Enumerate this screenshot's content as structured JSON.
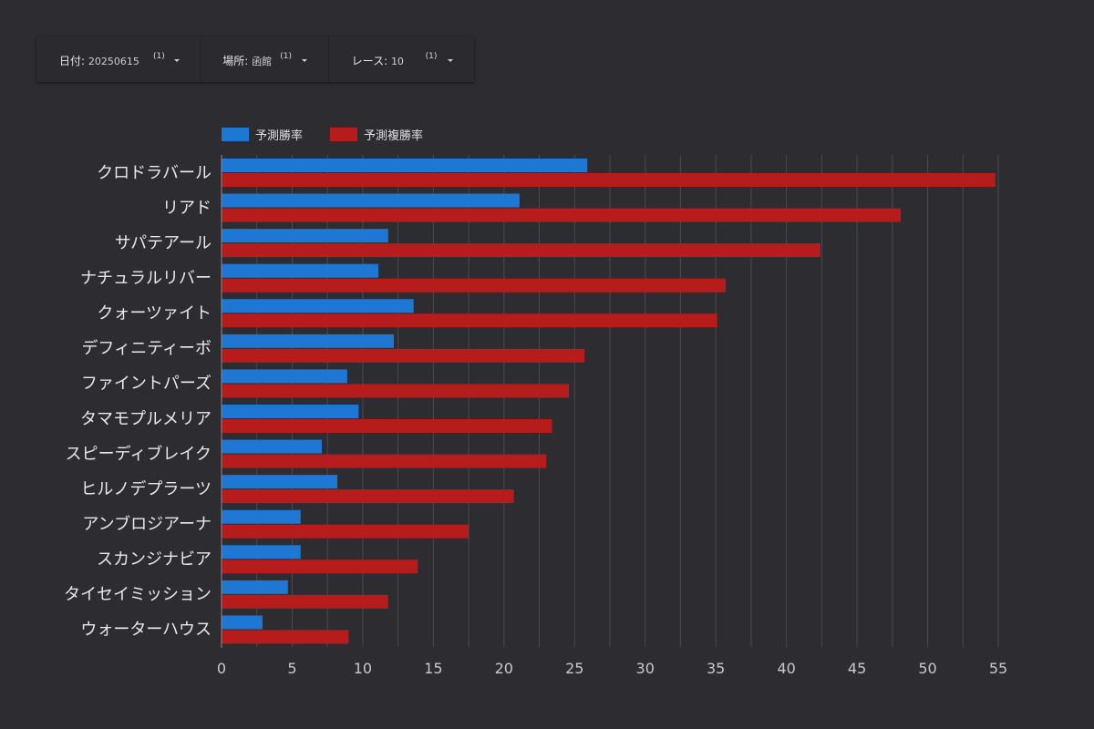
{
  "filters": [
    {
      "label": "日付",
      "value": "20250615",
      "count": "(1)"
    },
    {
      "label": "場所",
      "value": "函館",
      "count": "(1)"
    },
    {
      "label": "レース",
      "value": "10",
      "count": "(1)"
    }
  ],
  "colors": {
    "win": "#1f77d4",
    "place": "#b71c1c",
    "grid": "#4a4a4f",
    "axis": "#8a8a8f"
  },
  "chart_data": {
    "type": "bar",
    "orientation": "horizontal",
    "legend_position": "top-left",
    "grid": true,
    "xlim": [
      0,
      55
    ],
    "xticks": [
      0,
      5,
      10,
      15,
      20,
      25,
      30,
      35,
      40,
      45,
      50,
      55
    ],
    "categories": [
      "クロドラバール",
      "リアド",
      "サパテアール",
      "ナチュラルリバー",
      "クォーツァイト",
      "デフィニティーボ",
      "ファイントパーズ",
      "タマモプルメリア",
      "スピーディブレイク",
      "ヒルノデプラーツ",
      "アンブロジアーナ",
      "スカンジナビア",
      "タイセイミッション",
      "ウォーターハウス"
    ],
    "series": [
      {
        "name": "予測勝率",
        "values": [
          25.9,
          21.1,
          11.8,
          11.1,
          13.6,
          12.2,
          8.9,
          9.7,
          7.1,
          8.2,
          5.6,
          5.6,
          4.7,
          2.9
        ]
      },
      {
        "name": "予測複勝率",
        "values": [
          54.8,
          48.1,
          42.4,
          35.7,
          35.1,
          25.7,
          24.6,
          23.4,
          23.0,
          20.7,
          17.5,
          13.9,
          11.8,
          9.0
        ]
      }
    ]
  }
}
